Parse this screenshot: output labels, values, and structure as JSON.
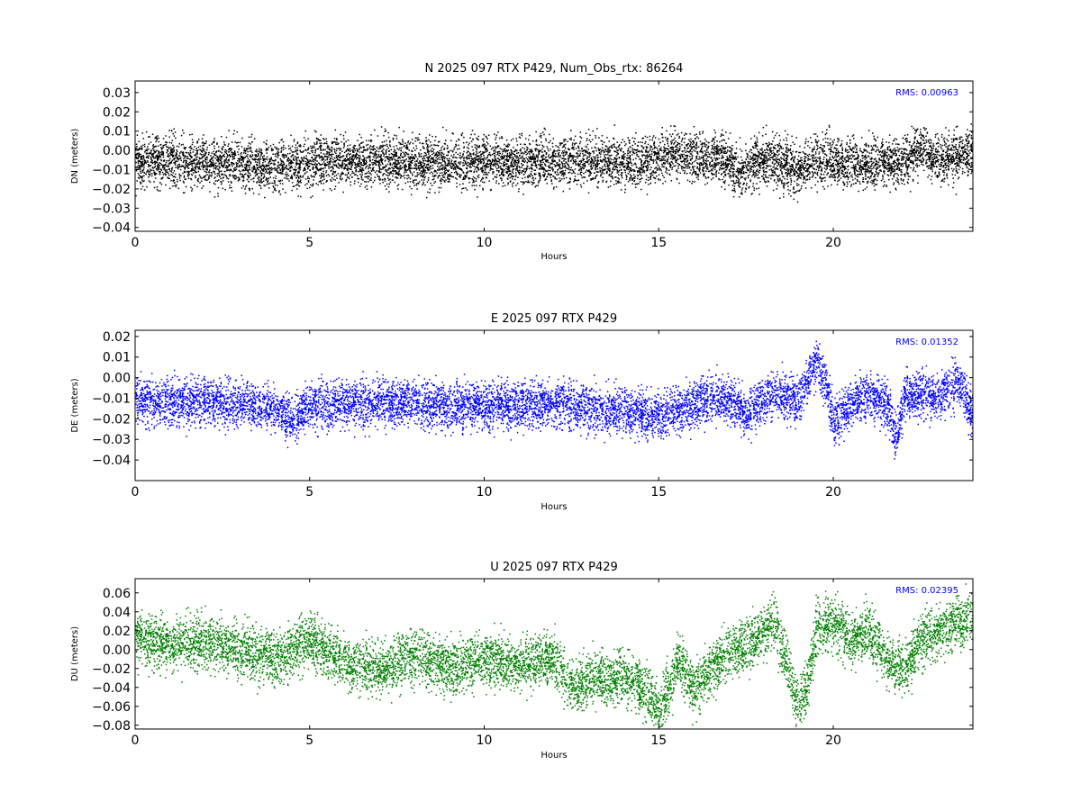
{
  "chart_data": [
    {
      "type": "scatter",
      "title": "N 2025 097 RTX  P429, Num_Obs_rtx: 86264",
      "xlabel": "Hours",
      "ylabel": "DN (meters)",
      "xlim": [
        0,
        24
      ],
      "ylim": [
        -0.042,
        0.036
      ],
      "xticks": [
        0,
        5,
        10,
        15,
        20
      ],
      "yticks": [
        0.03,
        0.02,
        0.01,
        0.0,
        -0.01,
        -0.02,
        -0.03,
        -0.04
      ],
      "ytick_labels": [
        "0.03",
        "0.02",
        "0.01",
        "0.00",
        "−0.01",
        "−0.02",
        "−0.03",
        "−0.04"
      ],
      "color": "#000000",
      "rms_text": "RMS:  0.00963",
      "rms_color": "#0000ff",
      "grid": false,
      "mean_trace": [
        [
          0,
          -0.005
        ],
        [
          1,
          -0.005
        ],
        [
          2,
          -0.006
        ],
        [
          3,
          -0.007
        ],
        [
          4,
          -0.008
        ],
        [
          5,
          -0.006
        ],
        [
          6,
          -0.005
        ],
        [
          7,
          -0.005
        ],
        [
          8,
          -0.006
        ],
        [
          9,
          -0.006
        ],
        [
          10,
          -0.005
        ],
        [
          11,
          -0.006
        ],
        [
          12,
          -0.005
        ],
        [
          13,
          -0.005
        ],
        [
          14,
          -0.006
        ],
        [
          15,
          -0.004
        ],
        [
          15.5,
          -0.002
        ],
        [
          16,
          -0.003
        ],
        [
          16.5,
          -0.004
        ],
        [
          17,
          -0.006
        ],
        [
          17.3,
          -0.012
        ],
        [
          18,
          -0.004
        ],
        [
          18.5,
          -0.006
        ],
        [
          19,
          -0.01
        ],
        [
          19.5,
          -0.004
        ],
        [
          20,
          -0.006
        ],
        [
          21,
          -0.007
        ],
        [
          22,
          -0.005
        ],
        [
          22.5,
          0.002
        ],
        [
          23,
          -0.004
        ],
        [
          24,
          -0.001
        ]
      ],
      "spread": 0.009
    },
    {
      "type": "scatter",
      "title": "E 2025 097 RTX  P429",
      "xlabel": "Hours",
      "ylabel": "DE (meters)",
      "xlim": [
        0,
        24
      ],
      "ylim": [
        -0.05,
        0.023
      ],
      "xticks": [
        0,
        5,
        10,
        15,
        20
      ],
      "yticks": [
        0.02,
        0.01,
        0.0,
        -0.01,
        -0.02,
        -0.03,
        -0.04
      ],
      "ytick_labels": [
        "0.02",
        "0.01",
        "0.00",
        "−0.01",
        "−0.02",
        "−0.03",
        "−0.04"
      ],
      "color": "#0000ff",
      "rms_text": "RMS:  0.01352",
      "rms_color": "#0000ff",
      "grid": false,
      "mean_trace": [
        [
          0,
          -0.011
        ],
        [
          1,
          -0.012
        ],
        [
          2,
          -0.011
        ],
        [
          3,
          -0.012
        ],
        [
          4,
          -0.015
        ],
        [
          4.5,
          -0.02
        ],
        [
          5,
          -0.014
        ],
        [
          6,
          -0.013
        ],
        [
          7,
          -0.012
        ],
        [
          8,
          -0.012
        ],
        [
          9,
          -0.014
        ],
        [
          10,
          -0.013
        ],
        [
          11,
          -0.013
        ],
        [
          12,
          -0.013
        ],
        [
          13,
          -0.015
        ],
        [
          14,
          -0.016
        ],
        [
          15,
          -0.018
        ],
        [
          15.5,
          -0.016
        ],
        [
          16,
          -0.013
        ],
        [
          16.5,
          -0.01
        ],
        [
          17,
          -0.01
        ],
        [
          17.5,
          -0.018
        ],
        [
          18,
          -0.01
        ],
        [
          18.5,
          -0.008
        ],
        [
          19,
          -0.012
        ],
        [
          19.5,
          0.01
        ],
        [
          19.8,
          -0.005
        ],
        [
          20,
          -0.022
        ],
        [
          20.5,
          -0.012
        ],
        [
          21,
          -0.008
        ],
        [
          21.5,
          -0.012
        ],
        [
          21.8,
          -0.03
        ],
        [
          22,
          -0.01
        ],
        [
          22.5,
          -0.008
        ],
        [
          23,
          -0.01
        ],
        [
          23.5,
          -0.002
        ],
        [
          24,
          -0.018
        ]
      ],
      "spread": 0.008
    },
    {
      "type": "scatter",
      "title": "U 2025 097 RTX  P429",
      "xlabel": "Hours",
      "ylabel": "DU (meters)",
      "xlim": [
        0,
        24
      ],
      "ylim": [
        -0.084,
        0.075
      ],
      "xticks": [
        0,
        5,
        10,
        15,
        20
      ],
      "yticks": [
        0.06,
        0.04,
        0.02,
        0.0,
        -0.02,
        -0.04,
        -0.06,
        -0.08
      ],
      "ytick_labels": [
        "0.06",
        "0.04",
        "0.02",
        "0.00",
        "−0.02",
        "−0.04",
        "−0.06",
        "−0.08"
      ],
      "color": "#008000",
      "rms_text": "RMS:  0.02395",
      "rms_color": "#0000ff",
      "grid": false,
      "mean_trace": [
        [
          0,
          0.015
        ],
        [
          1,
          0.005
        ],
        [
          2,
          0.01
        ],
        [
          3,
          0.0
        ],
        [
          4,
          -0.01
        ],
        [
          5,
          0.01
        ],
        [
          6,
          -0.015
        ],
        [
          7,
          -0.02
        ],
        [
          8,
          -0.005
        ],
        [
          9,
          -0.02
        ],
        [
          10,
          -0.01
        ],
        [
          11,
          -0.015
        ],
        [
          12,
          -0.01
        ],
        [
          12.5,
          -0.04
        ],
        [
          13,
          -0.03
        ],
        [
          14,
          -0.03
        ],
        [
          14.5,
          -0.04
        ],
        [
          15,
          -0.06
        ],
        [
          15.3,
          -0.04
        ],
        [
          15.5,
          -0.01
        ],
        [
          16,
          -0.04
        ],
        [
          16.5,
          -0.02
        ],
        [
          17,
          0.0
        ],
        [
          17.5,
          0.005
        ],
        [
          18,
          0.02
        ],
        [
          18.3,
          0.03
        ],
        [
          18.6,
          -0.01
        ],
        [
          19,
          -0.06
        ],
        [
          19.3,
          -0.03
        ],
        [
          19.5,
          0.02
        ],
        [
          20,
          0.03
        ],
        [
          20.5,
          0.01
        ],
        [
          21,
          0.02
        ],
        [
          21.5,
          -0.01
        ],
        [
          22,
          -0.02
        ],
        [
          22.5,
          0.01
        ],
        [
          23,
          0.02
        ],
        [
          24,
          0.035
        ]
      ],
      "spread": 0.02
    }
  ]
}
